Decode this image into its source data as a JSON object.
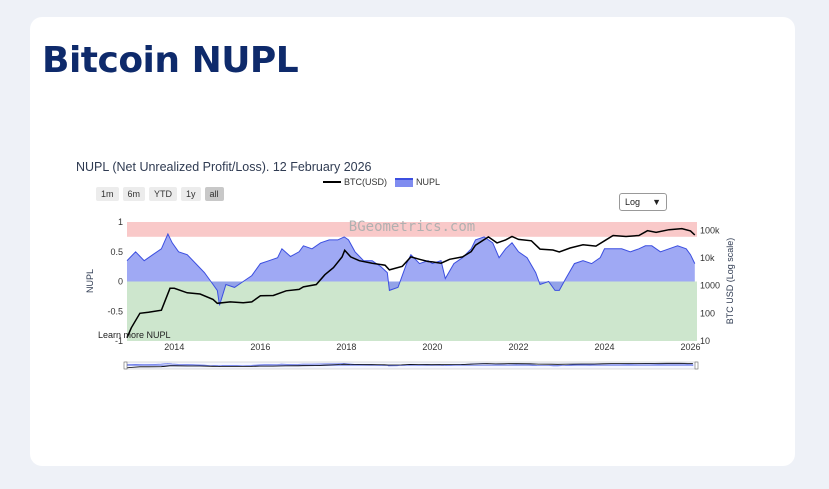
{
  "page": {
    "title": "Bitcoin NUPL"
  },
  "controls": {
    "range_buttons": [
      "1m",
      "6m",
      "YTD",
      "1y",
      "all"
    ],
    "active_range": "all",
    "scale_select": {
      "value": "Log",
      "arrow": "▼"
    },
    "learn_more": "Learn more NUPL",
    "watermark": "BGeometrics.com"
  },
  "colors": {
    "nupl_line": "#3c4fe0",
    "nupl_fill": "#7f8cf0",
    "btc_line": "#000000",
    "zone_greed": "#f9c9c9",
    "zone_optimism": "#ffffff",
    "zone_fear": "#cde6cd",
    "rangeslider_fill": "#e8ecff"
  },
  "chart_data": {
    "type": "area",
    "title": "NUPL (Net Unrealized Profit/Loss). 12 February 2026",
    "legend": [
      "BTC(USD)",
      "NUPL"
    ],
    "legend_position": "top-center",
    "x_ticks": [
      "2014",
      "2016",
      "2018",
      "2020",
      "2022",
      "2024",
      "2026"
    ],
    "y_left": {
      "label": "NUPL",
      "range": [
        -1,
        1
      ],
      "ticks": [
        "1",
        "0.5",
        "0",
        "-0.5",
        "-1"
      ]
    },
    "y_right": {
      "label": "BTC USD (Log scale)",
      "scale": "log",
      "range": [
        10,
        200000
      ],
      "ticks": [
        "100k",
        "10k",
        "1000",
        "100",
        "10"
      ]
    },
    "x_range": [
      2012.9,
      2026.15
    ],
    "zones": [
      {
        "from": 0.75,
        "to": 1.0
      },
      {
        "from": 0.5,
        "to": 0.75
      },
      {
        "from": -1.0,
        "to": 0.0
      }
    ],
    "series": [
      {
        "name": "NUPL",
        "axis": "left",
        "x": [
          2012.9,
          2013.1,
          2013.3,
          2013.5,
          2013.7,
          2013.85,
          2013.95,
          2014.1,
          2014.3,
          2014.5,
          2014.7,
          2014.85,
          2015.0,
          2015.05,
          2015.2,
          2015.4,
          2015.6,
          2015.8,
          2016.0,
          2016.2,
          2016.4,
          2016.5,
          2016.7,
          2016.9,
          2017.0,
          2017.2,
          2017.4,
          2017.6,
          2017.8,
          2017.95,
          2018.05,
          2018.2,
          2018.4,
          2018.6,
          2018.8,
          2018.95,
          2019.0,
          2019.2,
          2019.4,
          2019.5,
          2019.7,
          2019.9,
          2020.0,
          2020.2,
          2020.3,
          2020.5,
          2020.7,
          2020.9,
          2021.0,
          2021.2,
          2021.4,
          2021.55,
          2021.7,
          2021.85,
          2022.0,
          2022.2,
          2022.4,
          2022.5,
          2022.7,
          2022.85,
          2022.95,
          2023.1,
          2023.3,
          2023.5,
          2023.7,
          2023.9,
          2024.0,
          2024.2,
          2024.4,
          2024.6,
          2024.8,
          2024.95,
          2025.1,
          2025.3,
          2025.5,
          2025.7,
          2025.9,
          2026.0,
          2026.1
        ],
        "y": [
          0.35,
          0.5,
          0.35,
          0.45,
          0.55,
          0.8,
          0.65,
          0.5,
          0.45,
          0.3,
          0.15,
          0.0,
          -0.15,
          -0.4,
          -0.05,
          -0.1,
          0.0,
          0.1,
          0.3,
          0.35,
          0.4,
          0.55,
          0.42,
          0.5,
          0.6,
          0.55,
          0.65,
          0.7,
          0.7,
          0.75,
          0.7,
          0.5,
          0.35,
          0.35,
          0.25,
          0.15,
          -0.15,
          -0.1,
          0.3,
          0.45,
          0.3,
          0.35,
          0.3,
          0.35,
          0.05,
          0.3,
          0.4,
          0.55,
          0.7,
          0.75,
          0.65,
          0.4,
          0.55,
          0.65,
          0.5,
          0.4,
          0.15,
          -0.05,
          0.0,
          -0.15,
          -0.15,
          0.05,
          0.3,
          0.35,
          0.3,
          0.4,
          0.55,
          0.55,
          0.55,
          0.5,
          0.55,
          0.6,
          0.6,
          0.5,
          0.55,
          0.6,
          0.55,
          0.45,
          0.3
        ]
      },
      {
        "name": "BTC(USD)",
        "axis": "right",
        "x": [
          2012.9,
          2013.0,
          2013.2,
          2013.4,
          2013.7,
          2013.9,
          2014.0,
          2014.3,
          2014.6,
          2014.9,
          2015.0,
          2015.3,
          2015.6,
          2015.8,
          2016.0,
          2016.3,
          2016.6,
          2016.9,
          2017.0,
          2017.3,
          2017.5,
          2017.7,
          2017.9,
          2017.96,
          2018.1,
          2018.3,
          2018.6,
          2018.9,
          2019.0,
          2019.3,
          2019.5,
          2019.7,
          2019.9,
          2020.0,
          2020.2,
          2020.4,
          2020.7,
          2020.9,
          2021.0,
          2021.3,
          2021.5,
          2021.7,
          2021.85,
          2022.0,
          2022.3,
          2022.5,
          2022.8,
          2022.95,
          2023.2,
          2023.5,
          2023.8,
          2024.0,
          2024.2,
          2024.5,
          2024.8,
          2025.0,
          2025.2,
          2025.5,
          2025.8,
          2026.0,
          2026.1
        ],
        "y": [
          13,
          30,
          100,
          110,
          130,
          800,
          800,
          550,
          500,
          320,
          230,
          260,
          240,
          260,
          430,
          440,
          650,
          730,
          900,
          1100,
          2500,
          4500,
          11000,
          19000,
          11000,
          8000,
          6500,
          5500,
          3700,
          5000,
          11000,
          9000,
          7500,
          7200,
          6500,
          9000,
          11000,
          17000,
          29000,
          58000,
          35000,
          45000,
          60000,
          47000,
          42000,
          21000,
          19500,
          16500,
          23000,
          30000,
          27000,
          42000,
          65000,
          60000,
          65000,
          97000,
          85000,
          105000,
          115000,
          95000,
          68000
        ]
      }
    ]
  }
}
